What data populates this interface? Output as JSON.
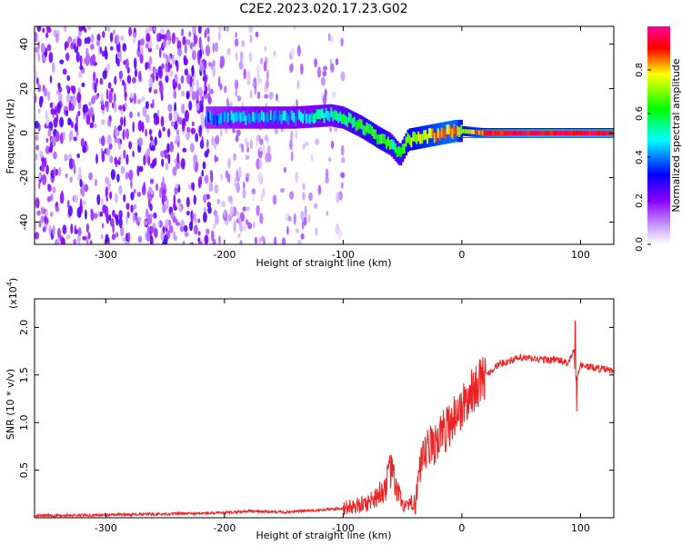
{
  "title": "C2E2.2023.020.17.23.G02",
  "chart_data": [
    {
      "type": "heatmap",
      "xlabel": "Height of straight line (km)",
      "ylabel": "Frequency (Hz)",
      "xlim": [
        -360,
        128
      ],
      "ylim": [
        -50,
        48
      ],
      "xticks": [
        -300,
        -200,
        -100,
        0,
        100
      ],
      "yticks": [
        -40,
        -20,
        0,
        20,
        40
      ],
      "colorbar": {
        "label": "Normalized spectral amplitude",
        "range": [
          0,
          1
        ],
        "ticks": [
          "0.0",
          "0.2",
          "0.4",
          "0.6",
          "0.8"
        ],
        "colors": [
          "#ffffff",
          "#8b00ff",
          "#0000ff",
          "#00ffff",
          "#00ff00",
          "#ffff00",
          "#ff0000",
          "#ff00aa"
        ]
      },
      "ridge": {
        "x": [
          -290,
          -260,
          -230,
          -200,
          -170,
          -140,
          -110,
          -100,
          -85,
          -70,
          -60,
          -52,
          -45,
          -35,
          -25,
          -15,
          -5,
          0,
          20,
          60,
          90,
          128
        ],
        "freq": [
          8,
          6,
          7,
          7,
          7,
          7,
          8,
          7,
          3,
          -2,
          -5,
          -10,
          -3,
          -2,
          -1,
          0,
          1,
          1,
          0,
          0,
          0,
          0
        ],
        "amplitude": [
          0.3,
          0.35,
          0.35,
          0.4,
          0.45,
          0.45,
          0.5,
          0.55,
          0.6,
          0.65,
          0.6,
          0.55,
          0.7,
          0.75,
          0.8,
          0.85,
          0.85,
          0.7,
          0.9,
          0.95,
          0.95,
          0.95
        ]
      }
    },
    {
      "type": "line",
      "xlabel": "Height of straight line (km)",
      "ylabel": "SNR (10 * v/v)",
      "yscale_label": "(x10",
      "yscale_exp": "4",
      "xlim": [
        -360,
        128
      ],
      "ylim": [
        0,
        2.3
      ],
      "xticks": [
        -300,
        -200,
        -100,
        0,
        100
      ],
      "yticks": [
        "0.5",
        "1.0",
        "1.5",
        "2.0"
      ],
      "color": "#ee2222",
      "series": [
        {
          "x": [
            -360,
            -300,
            -250,
            -200,
            -180,
            -150,
            -120,
            -100,
            -80,
            -65,
            -60,
            -55,
            -50,
            -45,
            -40,
            -35,
            -30,
            -25,
            -20,
            -15,
            -10,
            -5,
            0,
            10,
            20,
            30,
            40,
            50,
            60,
            70,
            80,
            90,
            95,
            97,
            100,
            110,
            120,
            128
          ],
          "values": [
            0.02,
            0.03,
            0.04,
            0.05,
            0.07,
            0.06,
            0.08,
            0.1,
            0.15,
            0.3,
            0.5,
            0.3,
            0.15,
            0.1,
            0.2,
            0.45,
            0.7,
            0.75,
            0.85,
            0.9,
            1.0,
            1.1,
            1.15,
            1.35,
            1.5,
            1.6,
            1.65,
            1.68,
            1.67,
            1.66,
            1.66,
            1.62,
            1.8,
            1.5,
            1.6,
            1.58,
            1.56,
            1.54
          ]
        }
      ]
    }
  ]
}
